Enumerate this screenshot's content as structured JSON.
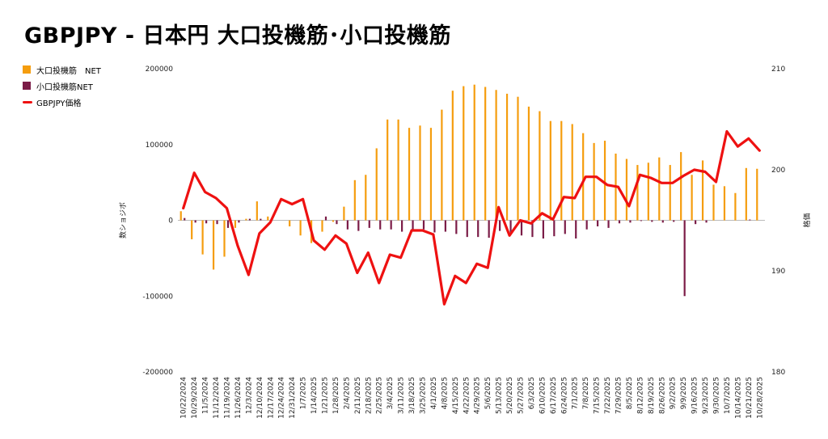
{
  "title": "GBPJPY - 日本円 大口投機筋･小口投機筋",
  "legend": [
    {
      "label": "大口投機筋　NET",
      "color": "#f59d0e",
      "kind": "bar"
    },
    {
      "label": "小口投機筋NET",
      "color": "#7b1c47",
      "kind": "bar"
    },
    {
      "label": "GBPJPY価格",
      "color": "#ee1111",
      "kind": "line"
    }
  ],
  "chart_data": {
    "type": "bar",
    "title": "GBPJPY - 日本円 大口投機筋･小口投機筋",
    "ylabel": "数ショジボ",
    "y2label": "格価",
    "ylim": [
      -200000,
      200000
    ],
    "y2lim": [
      180,
      210
    ],
    "yticks": [
      200000,
      100000,
      0,
      -100000,
      -200000
    ],
    "yticks_labels": [
      "200000",
      "100000",
      "0",
      "-100000",
      "-200000"
    ],
    "y2ticks": [
      210,
      200,
      190,
      180
    ],
    "grid": false,
    "legend_position": "top-left",
    "categories": [
      "10/22/2024",
      "10/29/2024",
      "11/5/2024",
      "11/12/2024",
      "11/19/2024",
      "11/26/2024",
      "12/3/2024",
      "12/10/2024",
      "12/17/2024",
      "12/24/2024",
      "12/31/2024",
      "1/7/2025",
      "1/14/2025",
      "1/21/2025",
      "1/28/2025",
      "2/4/2025",
      "2/11/2025",
      "2/18/2025",
      "2/25/2025",
      "3/4/2025",
      "3/11/2025",
      "3/18/2025",
      "3/25/2025",
      "4/1/2025",
      "4/8/2025",
      "4/15/2025",
      "4/22/2025",
      "4/29/2025",
      "5/6/2025",
      "5/13/2025",
      "5/20/2025",
      "5/27/2025",
      "6/3/2025",
      "6/10/2025",
      "6/17/2025",
      "6/24/2025",
      "7/1/2025",
      "7/8/2025",
      "7/15/2025",
      "7/22/2025",
      "7/29/2025",
      "8/5/2025",
      "8/12/2025",
      "8/19/2025",
      "8/26/2025",
      "9/2/2025",
      "9/9/2025",
      "9/16/2025",
      "9/23/2025",
      "9/30/2025",
      "10/7/2025",
      "10/14/2025",
      "10/21/2025",
      "10/28/2025"
    ],
    "series": [
      {
        "name": "大口投機筋　NET",
        "type": "bar",
        "axis": "left",
        "color": "#f59d0e",
        "values": [
          12000,
          -25000,
          -45000,
          -65000,
          -48000,
          -10000,
          2000,
          25000,
          5000,
          0,
          -8000,
          -20000,
          -30000,
          -15000,
          -2000,
          18000,
          53000,
          60000,
          95000,
          133000,
          133000,
          122000,
          125000,
          122000,
          146000,
          171000,
          177000,
          179000,
          176000,
          172000,
          167000,
          163000,
          150000,
          144000,
          131000,
          131000,
          127000,
          115000,
          102000,
          105000,
          88000,
          81000,
          73000,
          76000,
          83000,
          73000,
          90000,
          60000,
          79000,
          47000,
          45000,
          36000,
          69000,
          68000
        ]
      },
      {
        "name": "小口投機筋NET",
        "type": "bar",
        "axis": "left",
        "color": "#7b1c47",
        "values": [
          3000,
          -3000,
          -4000,
          -5000,
          -10000,
          -3000,
          2000,
          2000,
          2000,
          0,
          0,
          0,
          0,
          5000,
          -5000,
          -12000,
          -14000,
          -10000,
          -12000,
          -12000,
          -15000,
          -12000,
          -12000,
          -16000,
          -15000,
          -18000,
          -22000,
          -22000,
          -23000,
          -14000,
          -16000,
          -20000,
          -22000,
          -24000,
          -21000,
          -18000,
          -24000,
          -12000,
          -8000,
          -10000,
          -4000,
          -3000,
          -1000,
          -2000,
          -3000,
          -2000,
          -100000,
          -5000,
          -3000,
          0,
          0,
          0,
          1000,
          0
        ],
        "note_values_are_net_positions": true
      },
      {
        "name": "GBPJPY価格",
        "type": "line",
        "axis": "right",
        "color": "#ee1111",
        "values": [
          196.2,
          199.7,
          197.8,
          197.2,
          196.2,
          192.5,
          189.6,
          193.7,
          194.8,
          197.1,
          196.6,
          197.1,
          193.0,
          192.1,
          193.5,
          192.7,
          189.8,
          191.8,
          188.8,
          191.6,
          191.3,
          194.0,
          194.0,
          193.6,
          186.7,
          189.5,
          188.8,
          190.7,
          190.3,
          196.3,
          193.5,
          195.0,
          194.7,
          195.7,
          195.1,
          197.3,
          197.2,
          199.3,
          199.3,
          198.5,
          198.3,
          196.4,
          199.5,
          199.2,
          198.7,
          198.7,
          199.4,
          200.0,
          199.8,
          198.8,
          203.8,
          202.3,
          203.1,
          201.9
        ]
      }
    ]
  }
}
